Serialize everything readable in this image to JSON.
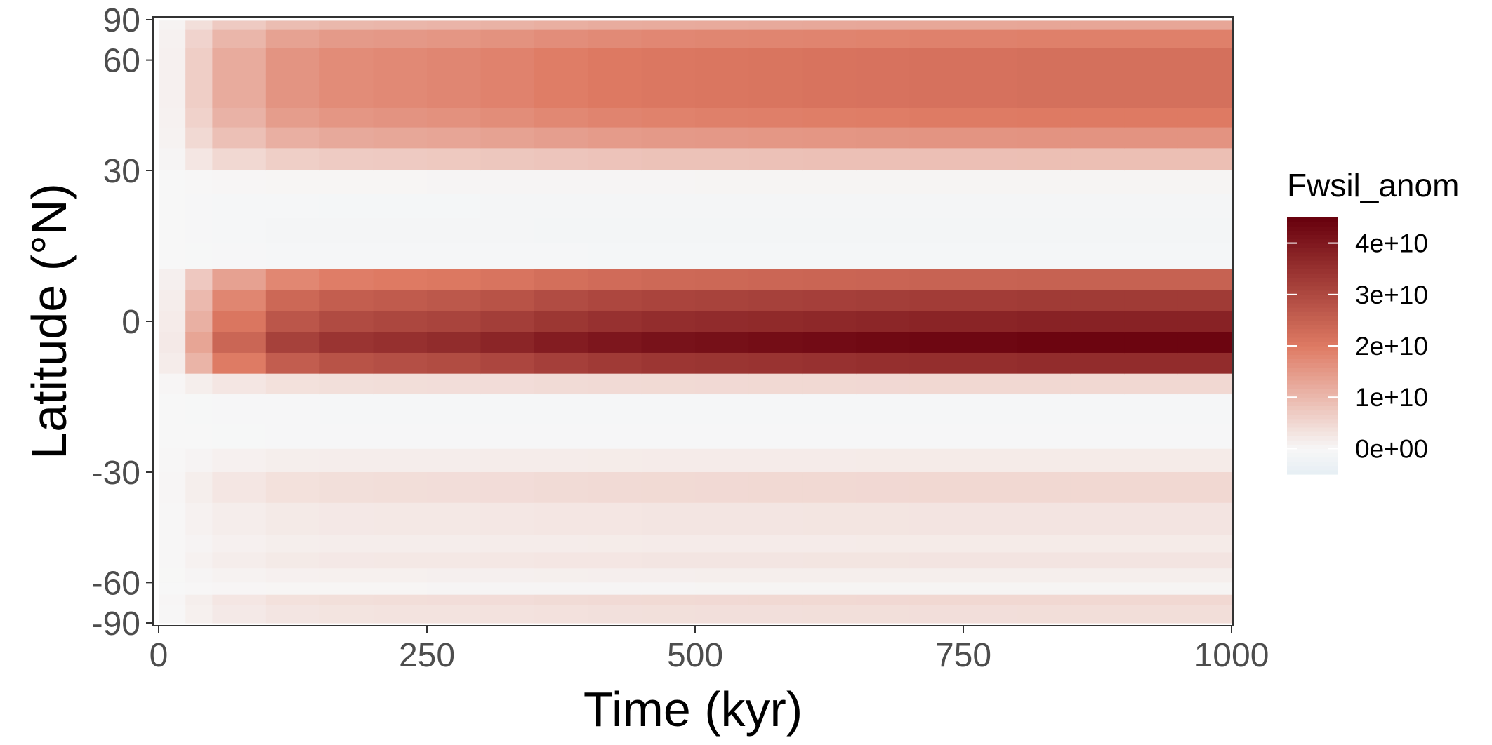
{
  "chart_data": {
    "type": "heatmap",
    "xlabel": "Time (kyr)",
    "ylabel": "Latitude (°N)",
    "xlim": [
      0,
      1000
    ],
    "ylim": [
      -90,
      90
    ],
    "x_ticks": [
      0,
      250,
      500,
      750,
      1000
    ],
    "y_ticks": [
      90,
      60,
      30,
      0,
      -30,
      -60,
      -90
    ],
    "y_axis_scale": "sine of latitude (area-weighted)",
    "legend": {
      "title": "Fwsil_anom",
      "placement": "right",
      "ticks": [
        {
          "value": 40000000000,
          "label": "4e+10"
        },
        {
          "value": 30000000000,
          "label": "3e+10"
        },
        {
          "value": 20000000000,
          "label": "2e+10"
        },
        {
          "value": 10000000000,
          "label": "1e+10"
        },
        {
          "value": 0,
          "label": "0e+00"
        }
      ],
      "range": [
        -5000000000,
        45000000000
      ]
    },
    "colors": {
      "negative": "#e6eef4",
      "zero": "#f7f7f7",
      "mid": "#de7a63",
      "max": "#67000d"
    },
    "time_steps": [
      0,
      25,
      50,
      100,
      150,
      200,
      250,
      300,
      350,
      400,
      450,
      500,
      550,
      600,
      650,
      700,
      750,
      800,
      850,
      900,
      950,
      1000
    ],
    "time_growth": [
      0.05,
      0.3,
      0.55,
      0.72,
      0.78,
      0.8,
      0.82,
      0.85,
      0.89,
      0.92,
      0.94,
      0.95,
      0.96,
      0.97,
      0.98,
      0.99,
      0.99,
      1.0,
      1.0,
      1.0,
      1.0,
      1.0
    ],
    "latitude_bands": [
      {
        "lat_min": 85,
        "lat_max": 90,
        "final_value": 4000000000
      },
      {
        "lat_min": 75,
        "lat_max": 85,
        "final_value": 13000000000
      },
      {
        "lat_min": 65,
        "lat_max": 75,
        "final_value": 19000000000
      },
      {
        "lat_min": 55,
        "lat_max": 65,
        "final_value": 22000000000
      },
      {
        "lat_min": 45,
        "lat_max": 55,
        "final_value": 22000000000
      },
      {
        "lat_min": 40,
        "lat_max": 45,
        "final_value": 20000000000
      },
      {
        "lat_min": 35,
        "lat_max": 40,
        "final_value": 16000000000
      },
      {
        "lat_min": 30,
        "lat_max": 35,
        "final_value": 9000000000
      },
      {
        "lat_min": 25,
        "lat_max": 30,
        "final_value": 500000000
      },
      {
        "lat_min": 20,
        "lat_max": 25,
        "final_value": -1000000000
      },
      {
        "lat_min": 15,
        "lat_max": 20,
        "final_value": -1200000000
      },
      {
        "lat_min": 10,
        "lat_max": 15,
        "final_value": -800000000
      },
      {
        "lat_min": 6,
        "lat_max": 10,
        "final_value": 25000000000
      },
      {
        "lat_min": 2,
        "lat_max": 6,
        "final_value": 33000000000
      },
      {
        "lat_min": -2,
        "lat_max": 2,
        "final_value": 38000000000
      },
      {
        "lat_min": -6,
        "lat_max": -2,
        "final_value": 44000000000
      },
      {
        "lat_min": -10,
        "lat_max": -6,
        "final_value": 36000000000
      },
      {
        "lat_min": -14,
        "lat_max": -10,
        "final_value": 5000000000
      },
      {
        "lat_min": -20,
        "lat_max": -14,
        "final_value": -600000000
      },
      {
        "lat_min": -25,
        "lat_max": -20,
        "final_value": -400000000
      },
      {
        "lat_min": -30,
        "lat_max": -25,
        "final_value": 2000000000
      },
      {
        "lat_min": -37,
        "lat_max": -30,
        "final_value": 5000000000
      },
      {
        "lat_min": -45,
        "lat_max": -37,
        "final_value": 3000000000
      },
      {
        "lat_min": -50,
        "lat_max": -45,
        "final_value": 2000000000
      },
      {
        "lat_min": -55,
        "lat_max": -50,
        "final_value": 3000000000
      },
      {
        "lat_min": -60,
        "lat_max": -55,
        "final_value": 1500000000
      },
      {
        "lat_min": -65,
        "lat_max": -60,
        "final_value": 500000000
      },
      {
        "lat_min": -70,
        "lat_max": -65,
        "final_value": 5000000000
      },
      {
        "lat_min": -90,
        "lat_max": -70,
        "final_value": 4000000000
      }
    ]
  }
}
